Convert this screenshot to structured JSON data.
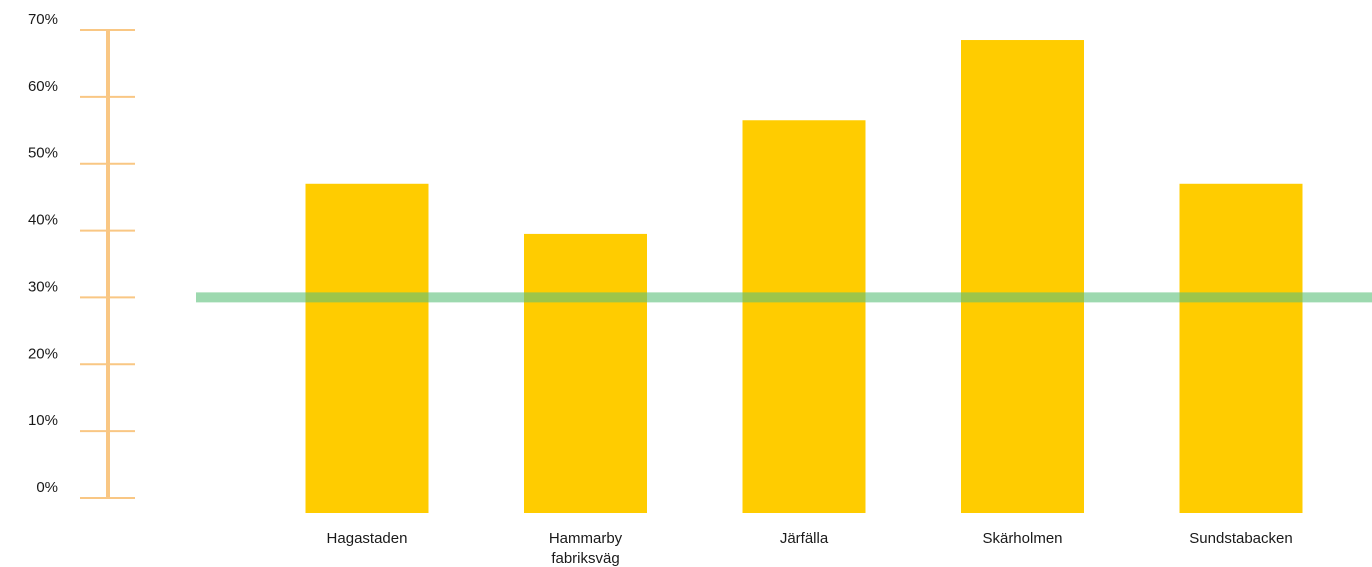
{
  "chart_data": {
    "type": "bar",
    "categories": [
      "Hagastaden",
      "Hammarby fabriksväg",
      "Järfälla",
      "Skärholmen",
      "Sundstabacken"
    ],
    "category_lines": [
      [
        "Hagastaden"
      ],
      [
        "Hammarby",
        "fabriksväg"
      ],
      [
        "Järfälla"
      ],
      [
        "Skärholmen"
      ],
      [
        "Sundstabacken"
      ]
    ],
    "values": [
      47,
      39.5,
      56.5,
      68.5,
      47
    ],
    "ylim": [
      0,
      70
    ],
    "yticks": [
      0,
      10,
      20,
      30,
      40,
      50,
      60,
      70
    ],
    "ytick_labels": [
      "0%",
      "10%",
      "20%",
      "30%",
      "40%",
      "50%",
      "60%",
      "70%"
    ],
    "reference_line": {
      "value": 30
    },
    "grid": false,
    "colors": {
      "bar": "#FFCC00",
      "axis": "#F9C784",
      "reference_line": "#5BBF7A"
    }
  }
}
